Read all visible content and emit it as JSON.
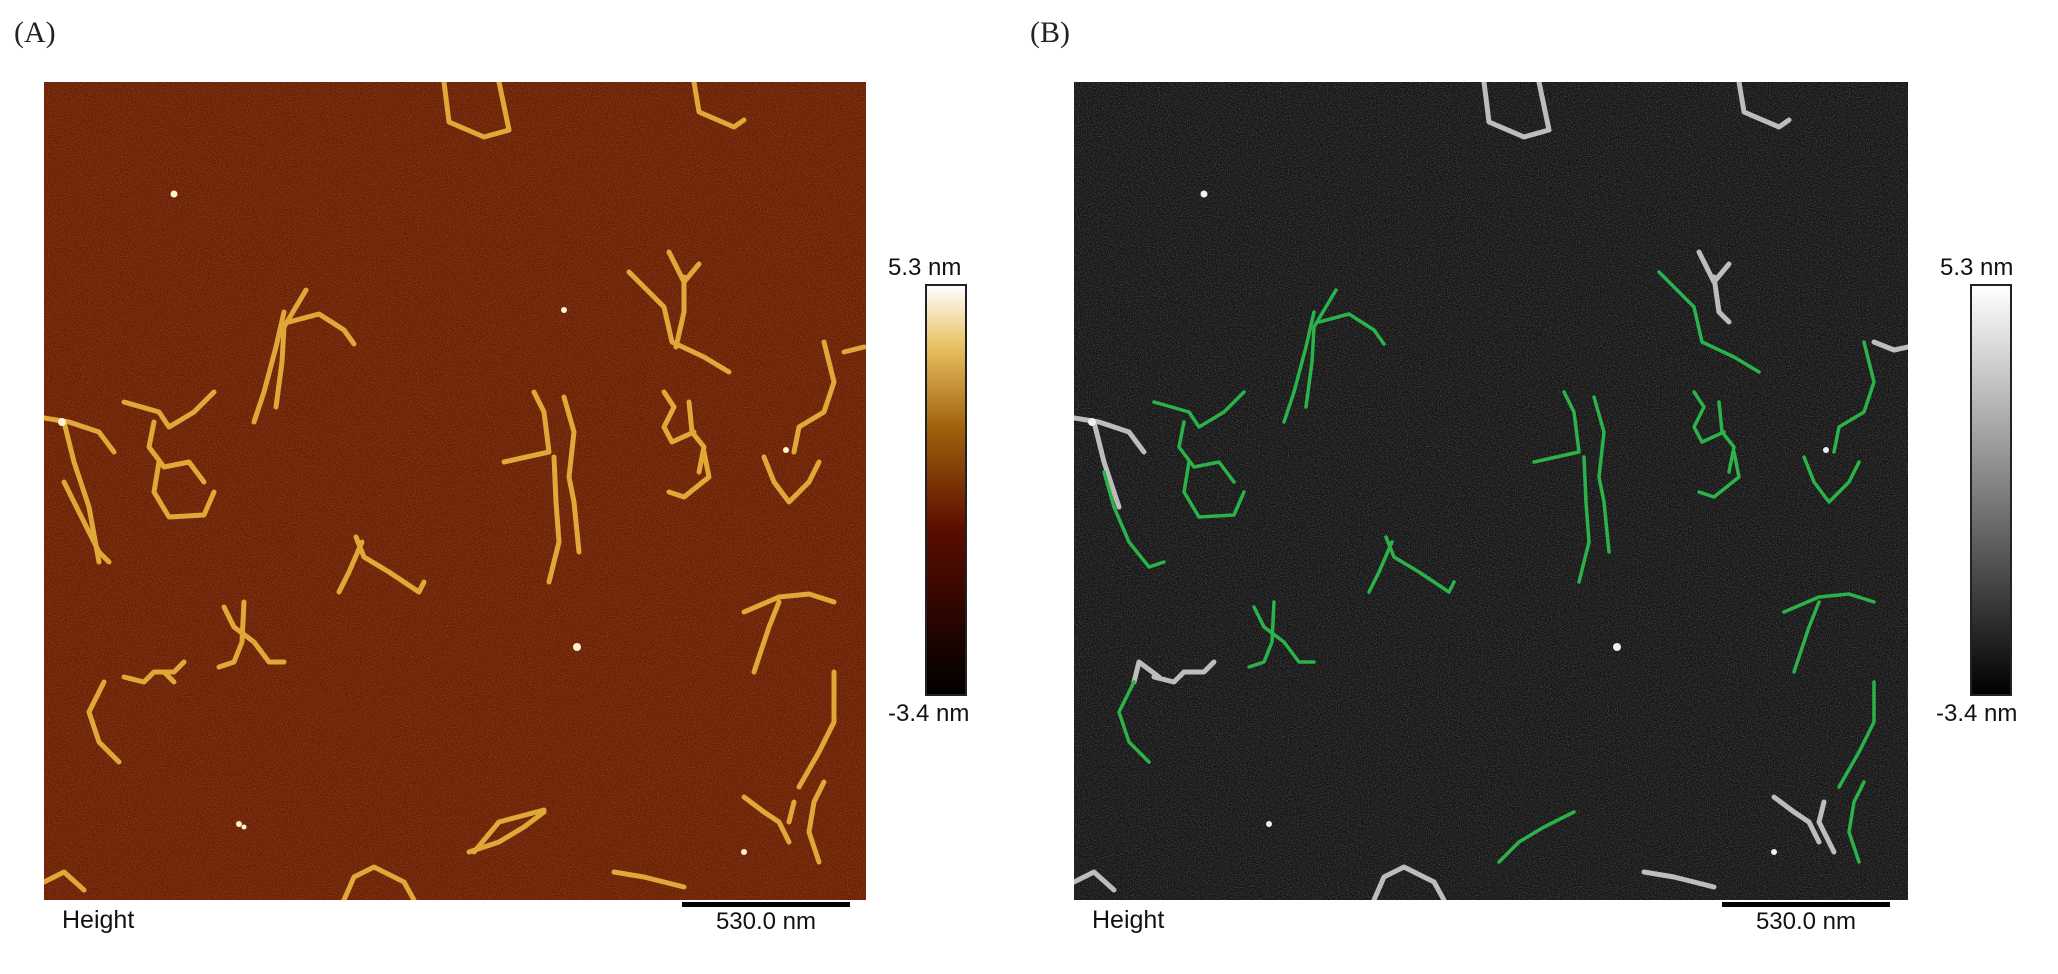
{
  "panel_a": {
    "letter": "(A)",
    "channel": "Height",
    "scale_bar": "530.0 nm",
    "colorbar": {
      "max": "5.3 nm",
      "min": "-3.4 nm",
      "colormap": [
        "#000000",
        "#5a0c00",
        "#a0600c",
        "#e8c060",
        "#ffffff"
      ]
    },
    "background_color": "#6a1e06",
    "feature_color": "#e0a838"
  },
  "panel_b": {
    "letter": "(B)",
    "channel": "Height",
    "scale_bar": "530.0 nm",
    "colorbar": {
      "max": "5.3 nm",
      "min": "-3.4 nm",
      "colormap": [
        "#000000",
        "#ffffff"
      ]
    },
    "background_color": "#161616",
    "feature_color": "#bdbdbd",
    "trace_color": "#2bb34a"
  }
}
